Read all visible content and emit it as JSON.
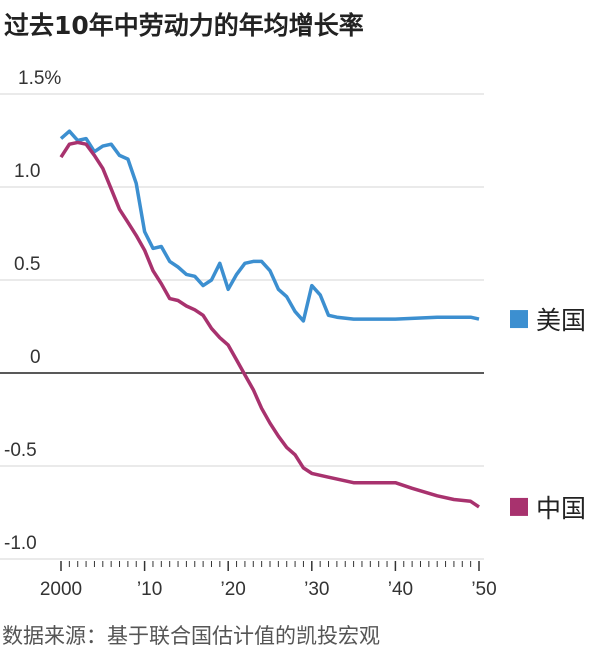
{
  "title": "过去10年中劳动力的年均增长率",
  "source": "数据来源：基于联合国估计值的凯投宏观",
  "chart_data": {
    "type": "line",
    "title": "过去10年中劳动力的年均增长率",
    "xlabel": "",
    "ylabel": "",
    "xlim": [
      2000,
      2050
    ],
    "ylim": [
      -1.0,
      1.5
    ],
    "grid": true,
    "legend": "right",
    "y_ticks": [
      {
        "v": 1.5,
        "label": "1.5%"
      },
      {
        "v": 1.0,
        "label": "1.0"
      },
      {
        "v": 0.5,
        "label": "0.5"
      },
      {
        "v": 0,
        "label": "0"
      },
      {
        "v": -0.5,
        "label": "-0.5"
      },
      {
        "v": -1.0,
        "label": "-1.0"
      }
    ],
    "x_ticks": [
      {
        "v": 2000,
        "label": "2000"
      },
      {
        "v": 2010,
        "label": "’10"
      },
      {
        "v": 2020,
        "label": "’20"
      },
      {
        "v": 2030,
        "label": "’30"
      },
      {
        "v": 2040,
        "label": "’40"
      },
      {
        "v": 2050,
        "label": "’50"
      }
    ],
    "series": [
      {
        "name": "美国",
        "color": "#3c8fd0",
        "x": [
          2000,
          2001,
          2002,
          2003,
          2004,
          2005,
          2006,
          2007,
          2008,
          2009,
          2010,
          2011,
          2012,
          2013,
          2014,
          2015,
          2016,
          2017,
          2018,
          2019,
          2020,
          2021,
          2022,
          2023,
          2024,
          2025,
          2026,
          2027,
          2028,
          2029,
          2030,
          2031,
          2032,
          2033,
          2035,
          2040,
          2045,
          2049,
          2050
        ],
        "y": [
          1.26,
          1.3,
          1.25,
          1.26,
          1.19,
          1.22,
          1.23,
          1.17,
          1.15,
          1.02,
          0.76,
          0.67,
          0.68,
          0.6,
          0.57,
          0.53,
          0.52,
          0.47,
          0.5,
          0.59,
          0.45,
          0.53,
          0.59,
          0.6,
          0.6,
          0.55,
          0.45,
          0.41,
          0.33,
          0.28,
          0.47,
          0.42,
          0.31,
          0.3,
          0.29,
          0.29,
          0.3,
          0.3,
          0.29
        ]
      },
      {
        "name": "中国",
        "color": "#a8326e",
        "x": [
          2000,
          2001,
          2002,
          2003,
          2004,
          2005,
          2006,
          2007,
          2008,
          2009,
          2010,
          2011,
          2012,
          2013,
          2014,
          2015,
          2016,
          2017,
          2018,
          2019,
          2020,
          2021,
          2022,
          2023,
          2024,
          2025,
          2026,
          2027,
          2028,
          2029,
          2030,
          2032,
          2035,
          2037,
          2040,
          2042,
          2045,
          2047,
          2049,
          2050
        ],
        "y": [
          1.16,
          1.23,
          1.24,
          1.23,
          1.17,
          1.1,
          0.99,
          0.88,
          0.81,
          0.74,
          0.66,
          0.55,
          0.48,
          0.4,
          0.39,
          0.36,
          0.34,
          0.31,
          0.24,
          0.19,
          0.15,
          0.07,
          -0.01,
          -0.09,
          -0.19,
          -0.27,
          -0.34,
          -0.4,
          -0.44,
          -0.51,
          -0.54,
          -0.56,
          -0.59,
          -0.59,
          -0.59,
          -0.62,
          -0.66,
          -0.68,
          -0.69,
          -0.72
        ]
      }
    ]
  }
}
